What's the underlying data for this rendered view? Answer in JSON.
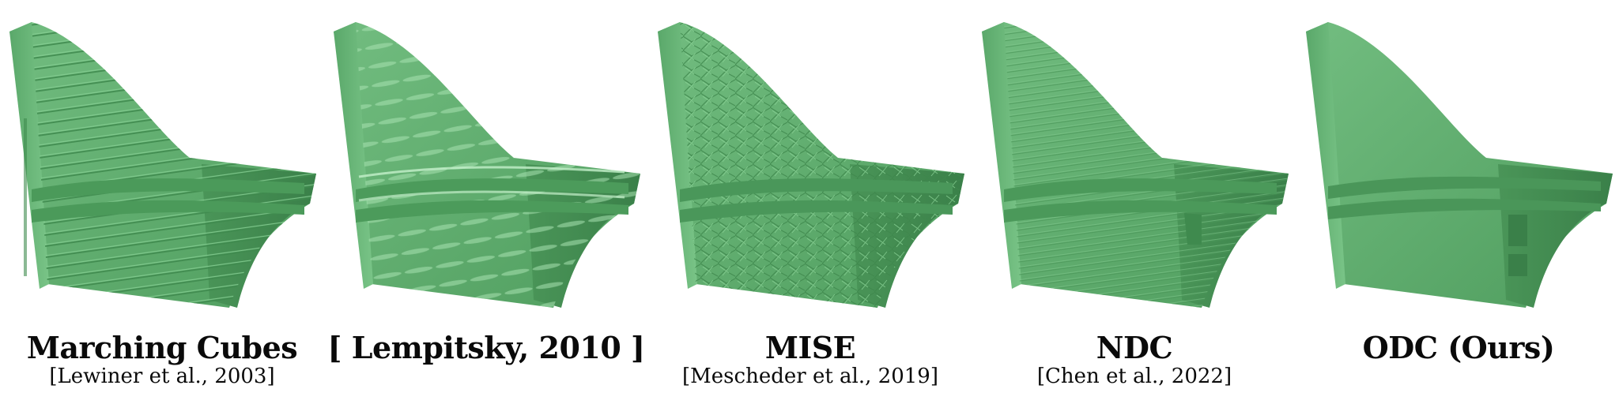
{
  "figure": {
    "surface_color": "#5fae6e",
    "panels": [
      {
        "title": "Marching Cubes",
        "citation": "[Lewiner et al., 2003]",
        "artifact": "staircase"
      },
      {
        "title": "[ Lempitsky, 2010 ]",
        "citation": "",
        "artifact": "smoothed-bumps"
      },
      {
        "title": "MISE",
        "citation": "[Mescheder et al., 2019]",
        "artifact": "noisy-triangles"
      },
      {
        "title": "NDC",
        "citation": "[Chen et al., 2022]",
        "artifact": "fine-steps"
      },
      {
        "title": "ODC (Ours)",
        "citation": "",
        "artifact": "clean"
      }
    ]
  }
}
